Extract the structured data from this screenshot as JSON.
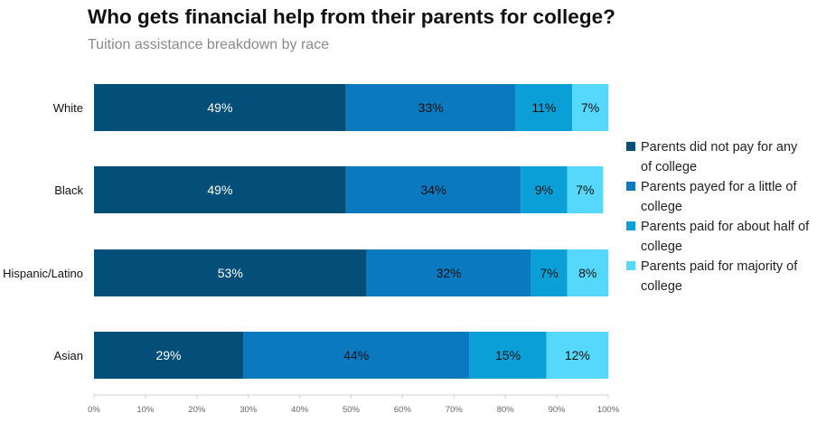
{
  "chart_data": {
    "type": "bar",
    "orientation": "horizontal",
    "stacked": true,
    "title": "Who gets financial help from their parents for college?",
    "subtitle": "Tuition assistance breakdown by race",
    "categories": [
      "White",
      "Black",
      "Hispanic/Latino",
      "Asian"
    ],
    "series": [
      {
        "name": "Parents did not pay for any of college",
        "values": [
          49,
          49,
          53,
          29
        ],
        "labels": [
          "49%",
          "49%",
          "53%",
          "29%"
        ],
        "color": "#044f7a",
        "label_color": "#ffffff"
      },
      {
        "name": "Parents payed for a little of college",
        "values": [
          33,
          34,
          32,
          44
        ],
        "labels": [
          "33%",
          "34%",
          "32%",
          "44%"
        ],
        "color": "#0a79bf",
        "label_color": "#111111"
      },
      {
        "name": "Parents paid for about half of college",
        "values": [
          11,
          9,
          7,
          15
        ],
        "labels": [
          "11%",
          "9%",
          "7%",
          "15%"
        ],
        "color": "#0b9fd8",
        "label_color": "#111111"
      },
      {
        "name": "Parents paid for majority of college",
        "values": [
          7,
          7,
          8,
          12
        ],
        "labels": [
          "7%",
          "7%",
          "8%",
          "12%"
        ],
        "color": "#55d8fb",
        "label_color": "#111111"
      }
    ],
    "xlim": [
      0,
      100
    ],
    "x_ticks": [
      "0%",
      "10%",
      "20%",
      "30%",
      "40%",
      "50%",
      "60%",
      "70%",
      "80%",
      "90%",
      "100%"
    ],
    "xlabel": "",
    "ylabel": "",
    "grid": false,
    "legend": "right"
  }
}
